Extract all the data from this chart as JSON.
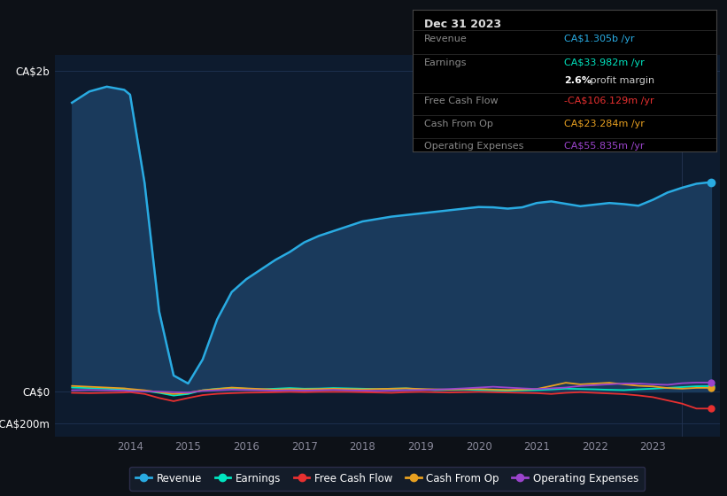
{
  "bg_color": "#0d1117",
  "plot_bg_color": "#0d1b2e",
  "years": [
    2013.0,
    2013.3,
    2013.6,
    2013.9,
    2014.0,
    2014.25,
    2014.5,
    2014.75,
    2015.0,
    2015.25,
    2015.5,
    2015.75,
    2016.0,
    2016.25,
    2016.5,
    2016.75,
    2017.0,
    2017.25,
    2017.5,
    2017.75,
    2018.0,
    2018.25,
    2018.5,
    2018.75,
    2019.0,
    2019.25,
    2019.5,
    2019.75,
    2020.0,
    2020.25,
    2020.5,
    2020.75,
    2021.0,
    2021.25,
    2021.5,
    2021.75,
    2022.0,
    2022.25,
    2022.5,
    2022.75,
    2023.0,
    2023.25,
    2023.5,
    2023.75,
    2024.0
  ],
  "revenue": [
    1800,
    1870,
    1900,
    1880,
    1850,
    1300,
    500,
    100,
    50,
    200,
    450,
    620,
    700,
    760,
    820,
    870,
    930,
    970,
    1000,
    1030,
    1060,
    1075,
    1090,
    1100,
    1110,
    1120,
    1130,
    1140,
    1150,
    1148,
    1140,
    1148,
    1175,
    1185,
    1170,
    1155,
    1165,
    1175,
    1168,
    1158,
    1195,
    1240,
    1270,
    1295,
    1305
  ],
  "earnings": [
    25,
    22,
    18,
    12,
    8,
    4,
    -8,
    -25,
    -15,
    8,
    18,
    22,
    18,
    14,
    18,
    22,
    18,
    19,
    22,
    20,
    18,
    16,
    18,
    20,
    14,
    9,
    11,
    13,
    9,
    7,
    5,
    7,
    9,
    13,
    18,
    16,
    14,
    11,
    9,
    14,
    18,
    23,
    28,
    33,
    34
  ],
  "free_cash_flow": [
    -8,
    -10,
    -8,
    -6,
    -4,
    -15,
    -40,
    -60,
    -40,
    -22,
    -14,
    -10,
    -7,
    -6,
    -4,
    -2,
    -4,
    -2,
    -2,
    -2,
    -4,
    -6,
    -8,
    -4,
    -2,
    -4,
    -6,
    -4,
    -2,
    -4,
    -6,
    -8,
    -10,
    -15,
    -8,
    -4,
    -8,
    -12,
    -16,
    -24,
    -35,
    -55,
    -75,
    -106,
    -106
  ],
  "cash_from_op": [
    35,
    30,
    25,
    20,
    16,
    8,
    -4,
    -15,
    -8,
    8,
    16,
    25,
    20,
    16,
    12,
    16,
    14,
    16,
    18,
    16,
    14,
    16,
    18,
    20,
    16,
    14,
    12,
    14,
    16,
    12,
    10,
    12,
    16,
    35,
    55,
    45,
    50,
    55,
    45,
    36,
    32,
    22,
    18,
    23,
    23
  ],
  "operating_expenses": [
    8,
    10,
    8,
    6,
    4,
    2,
    0,
    -4,
    -6,
    4,
    8,
    12,
    10,
    8,
    6,
    8,
    6,
    8,
    10,
    8,
    6,
    4,
    6,
    8,
    10,
    12,
    16,
    20,
    25,
    30,
    25,
    20,
    16,
    20,
    25,
    35,
    40,
    45,
    50,
    50,
    45,
    42,
    52,
    56,
    56
  ],
  "revenue_color": "#29abe2",
  "earnings_color": "#00e5c0",
  "free_cash_flow_color": "#e83030",
  "cash_from_op_color": "#e8a020",
  "operating_expenses_color": "#9b44cc",
  "revenue_fill_color": "#1a3a5c",
  "ylim_min": -280,
  "ylim_max": 2100,
  "ytick_vals": [
    -200,
    0,
    2000
  ],
  "ytick_labels": [
    "-CA$200m",
    "CA$0",
    "CA$2b"
  ],
  "xticks": [
    2014,
    2015,
    2016,
    2017,
    2018,
    2019,
    2020,
    2021,
    2022,
    2023
  ],
  "grid_color": "#1e3252",
  "text_color": "#888899",
  "white_color": "#ffffff",
  "info_box_title": "Dec 31 2023",
  "info_rows": [
    {
      "label": "Revenue",
      "value": "CA$1.305b /yr",
      "value_color": "#29abe2",
      "bold_part": null
    },
    {
      "label": "Earnings",
      "value": "CA$33.982m /yr",
      "value_color": "#00e5c0",
      "bold_part": null
    },
    {
      "label": "",
      "value": " profit margin",
      "value_color": "#cccccc",
      "bold_part": "2.6%"
    },
    {
      "label": "Free Cash Flow",
      "value": "-CA$106.129m /yr",
      "value_color": "#e83030",
      "bold_part": null
    },
    {
      "label": "Cash From Op",
      "value": "CA$23.284m /yr",
      "value_color": "#e8a020",
      "bold_part": null
    },
    {
      "label": "Operating Expenses",
      "value": "CA$55.835m /yr",
      "value_color": "#9b44cc",
      "bold_part": null
    }
  ],
  "legend_items": [
    {
      "label": "Revenue",
      "color": "#29abe2"
    },
    {
      "label": "Earnings",
      "color": "#00e5c0"
    },
    {
      "label": "Free Cash Flow",
      "color": "#e83030"
    },
    {
      "label": "Cash From Op",
      "color": "#e8a020"
    },
    {
      "label": "Operating Expenses",
      "color": "#9b44cc"
    }
  ]
}
